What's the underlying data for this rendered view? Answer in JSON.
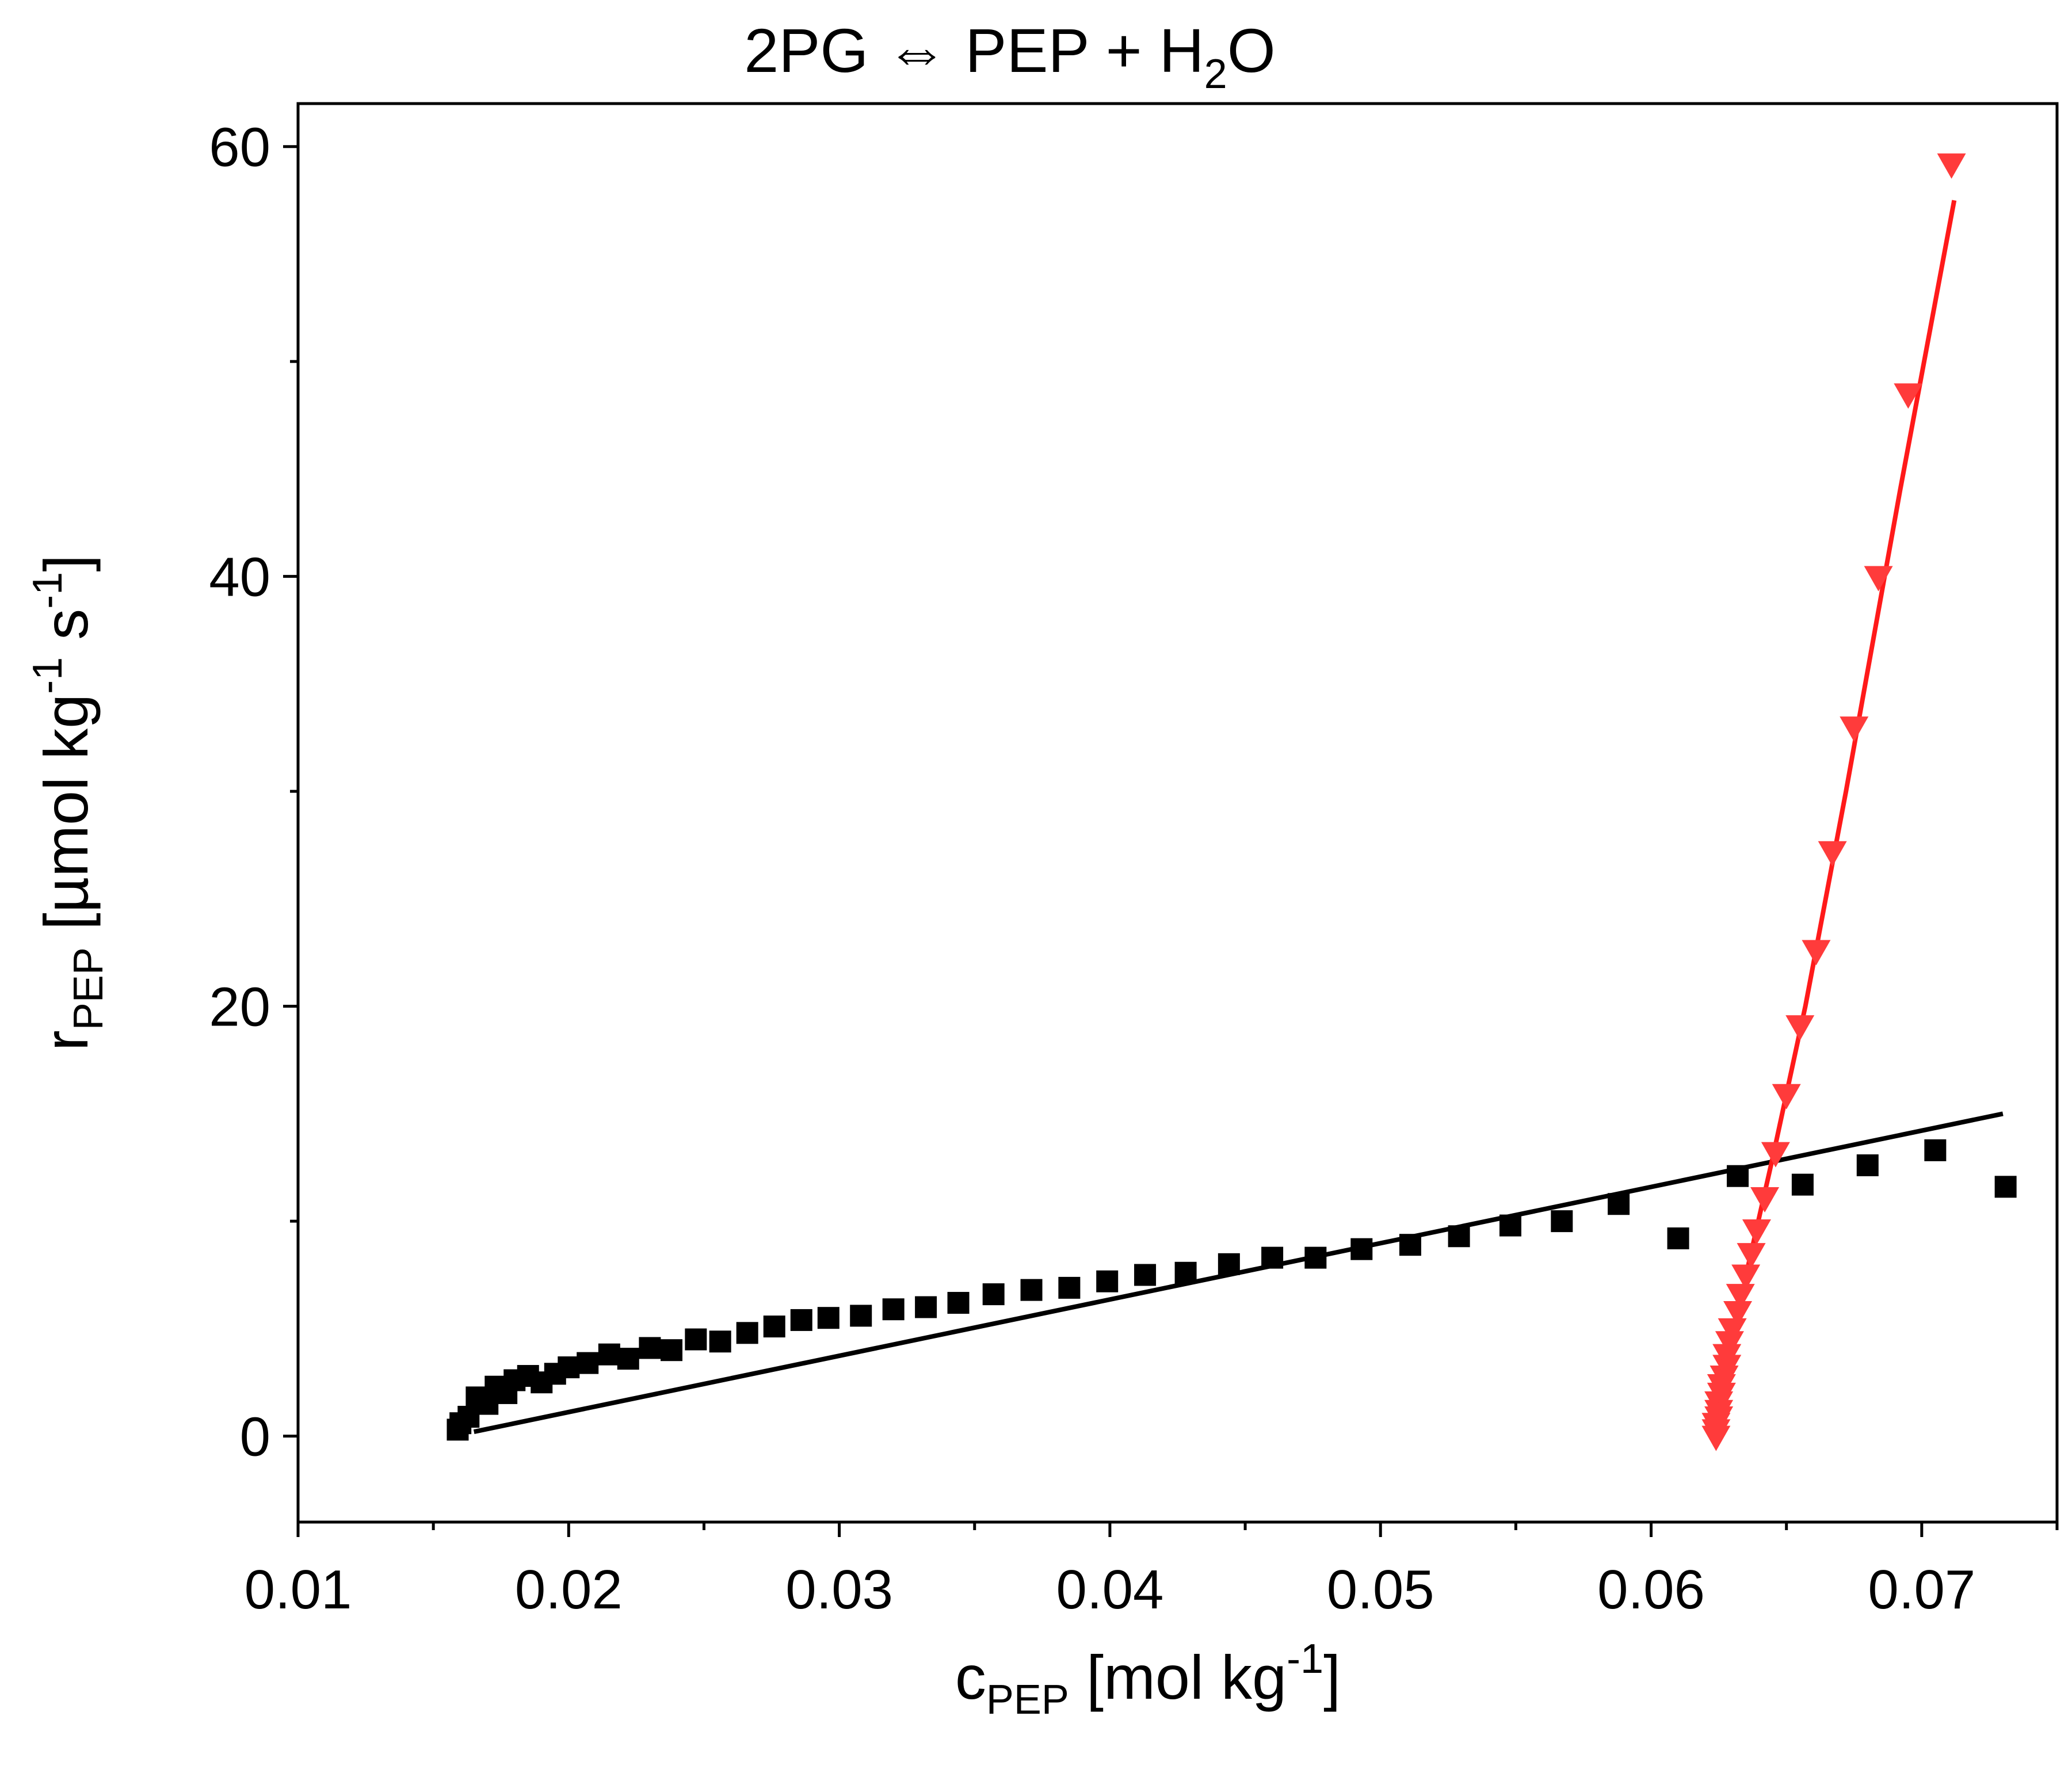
{
  "chart_data": {
    "type": "scatter",
    "title": {
      "text": "2PG ⇔ PEP + H2O",
      "lhs": "2PG",
      "arrow": "⇔",
      "mid": "PEP + H",
      "subscript": "2",
      "rhs": "O"
    },
    "xlabel": {
      "text": "cPEP [mol kg-1]",
      "symbol": "c",
      "symbol_sub": "PEP",
      "unit": " [mol kg",
      "unit_sup": "-1",
      "unit_close": "]"
    },
    "ylabel": {
      "text": "rPEP [µmol kg-1 s-1]",
      "symbol": "r",
      "symbol_sub": "PEP",
      "unit": " [µmol kg",
      "unit_sup1": "-1",
      "unit_mid": " s",
      "unit_sup2": "-1",
      "unit_close": "]"
    },
    "xlim": [
      0.01,
      0.075
    ],
    "ylim": [
      -4,
      62
    ],
    "xticks": [
      0.01,
      0.02,
      0.03,
      0.04,
      0.05,
      0.06,
      0.07
    ],
    "xtick_labels": [
      "0.01",
      "0.02",
      "0.03",
      "0.04",
      "0.05",
      "0.06",
      "0.07"
    ],
    "xminor": [
      0.015,
      0.025,
      0.035,
      0.045,
      0.055,
      0.065,
      0.075
    ],
    "yticks": [
      0,
      20,
      40,
      60
    ],
    "ytick_labels": [
      "0",
      "20",
      "40",
      "60"
    ],
    "yminor": [
      10,
      30,
      50
    ],
    "grid": false,
    "series": [
      {
        "name": "black squares",
        "marker": "square",
        "color": "#000000",
        "points": [
          [
            0.0159,
            0.3
          ],
          [
            0.016,
            0.6
          ],
          [
            0.0163,
            0.9
          ],
          [
            0.0166,
            1.8
          ],
          [
            0.017,
            1.5
          ],
          [
            0.0173,
            2.3
          ],
          [
            0.0177,
            2.0
          ],
          [
            0.018,
            2.6
          ],
          [
            0.0185,
            2.8
          ],
          [
            0.019,
            2.5
          ],
          [
            0.0195,
            2.9
          ],
          [
            0.02,
            3.2
          ],
          [
            0.0207,
            3.4
          ],
          [
            0.0215,
            3.8
          ],
          [
            0.0222,
            3.6
          ],
          [
            0.023,
            4.1
          ],
          [
            0.0238,
            4.0
          ],
          [
            0.0247,
            4.5
          ],
          [
            0.0256,
            4.4
          ],
          [
            0.0266,
            4.8
          ],
          [
            0.0276,
            5.1
          ],
          [
            0.0286,
            5.4
          ],
          [
            0.0296,
            5.5
          ],
          [
            0.0308,
            5.6
          ],
          [
            0.032,
            5.9
          ],
          [
            0.0332,
            6.0
          ],
          [
            0.0344,
            6.2
          ],
          [
            0.0357,
            6.6
          ],
          [
            0.0371,
            6.8
          ],
          [
            0.0385,
            6.9
          ],
          [
            0.0399,
            7.2
          ],
          [
            0.0413,
            7.5
          ],
          [
            0.0428,
            7.6
          ],
          [
            0.0444,
            8.0
          ],
          [
            0.046,
            8.3
          ],
          [
            0.0476,
            8.3
          ],
          [
            0.0493,
            8.7
          ],
          [
            0.0511,
            8.9
          ],
          [
            0.0529,
            9.3
          ],
          [
            0.0548,
            9.8
          ],
          [
            0.0567,
            10.0
          ],
          [
            0.0588,
            10.8
          ],
          [
            0.061,
            9.2
          ],
          [
            0.0632,
            12.1
          ],
          [
            0.0656,
            11.7
          ],
          [
            0.068,
            12.6
          ],
          [
            0.0705,
            13.3
          ],
          [
            0.0731,
            11.6
          ]
        ]
      },
      {
        "name": "red triangles",
        "marker": "triangle-down",
        "color": "#ff3b3b",
        "points": [
          [
            0.0624,
            0.0
          ],
          [
            0.0624,
            0.3
          ],
          [
            0.0624,
            0.6
          ],
          [
            0.0625,
            0.9
          ],
          [
            0.0625,
            1.2
          ],
          [
            0.0625,
            1.6
          ],
          [
            0.0626,
            2.0
          ],
          [
            0.0626,
            2.4
          ],
          [
            0.0627,
            2.8
          ],
          [
            0.0628,
            3.3
          ],
          [
            0.0628,
            3.8
          ],
          [
            0.0629,
            4.4
          ],
          [
            0.063,
            5.0
          ],
          [
            0.0632,
            5.8
          ],
          [
            0.0633,
            6.6
          ],
          [
            0.0635,
            7.5
          ],
          [
            0.0637,
            8.5
          ],
          [
            0.0639,
            9.6
          ],
          [
            0.0642,
            11.1
          ],
          [
            0.0646,
            13.2
          ],
          [
            0.065,
            15.9
          ],
          [
            0.0655,
            19.1
          ],
          [
            0.0661,
            22.6
          ],
          [
            0.0667,
            27.2
          ],
          [
            0.0675,
            33.0
          ],
          [
            0.0684,
            40.0
          ],
          [
            0.0695,
            48.5
          ],
          [
            0.0711,
            59.2
          ]
        ]
      }
    ],
    "fits": [
      {
        "name": "black fit",
        "color": "#000000",
        "points": [
          [
            0.0165,
            0.2
          ],
          [
            0.073,
            15.0
          ]
        ]
      },
      {
        "name": "red fit",
        "color": "#ff1a1a",
        "points": [
          [
            0.0623,
            0.0
          ],
          [
            0.0628,
            3.0
          ],
          [
            0.0636,
            8.0
          ],
          [
            0.0645,
            13.0
          ],
          [
            0.0657,
            20.0
          ],
          [
            0.0672,
            30.0
          ],
          [
            0.0692,
            44.0
          ],
          [
            0.0712,
            57.5
          ]
        ]
      }
    ]
  }
}
